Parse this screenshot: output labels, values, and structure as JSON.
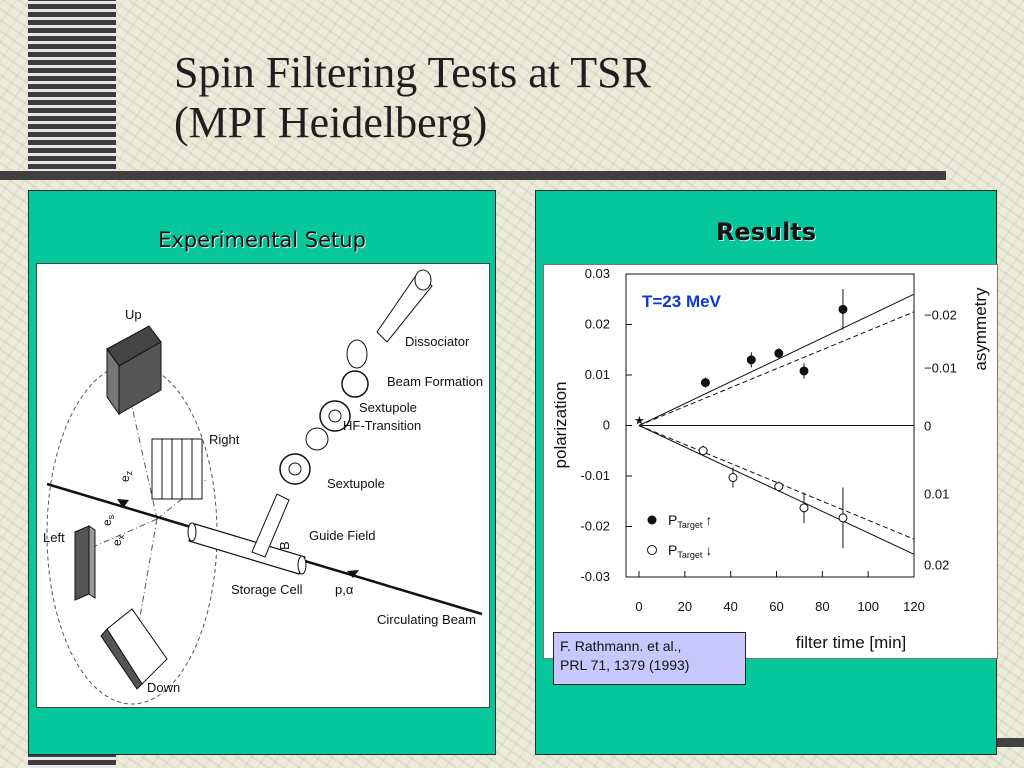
{
  "slide": {
    "title_line1": "Spin Filtering Tests at TSR",
    "title_line2": "(MPI Heidelberg)"
  },
  "left_panel": {
    "heading": "Experimental Setup",
    "labels": {
      "up": "Up",
      "right": "Right",
      "left": "Left",
      "down": "Down",
      "dissociator": "Dissociator",
      "beam_formation": "Beam Formation",
      "sextupole_1": "Sextupole",
      "hf_transition": "HF-Transition",
      "sextupole_2": "Sextupole",
      "guide_field": "Guide Field",
      "b_field": "B",
      "storage_cell": "Storage Cell",
      "circulating_beam": "Circulating Beam",
      "p_alpha": "p,α",
      "e_z": "e",
      "e_z_sub": "z",
      "e_s": "e",
      "e_s_sub": "s",
      "e_x": "e",
      "e_x_sub": "x"
    }
  },
  "right_panel": {
    "heading": "Results",
    "citation_line1": "F. Rathmann. et al.,",
    "citation_line2": "PRL 71, 1379 (1993)"
  },
  "chart_data": {
    "type": "scatter",
    "annotation": "T=23 MeV",
    "xlabel": "filter time [min]",
    "ylabel": "polarization",
    "y2label": "asymmetry",
    "xlim": [
      0,
      120
    ],
    "ylim": [
      -0.03,
      0.03
    ],
    "x_ticks": [
      "0",
      "20",
      "40",
      "60",
      "80",
      "100",
      "120"
    ],
    "y_ticks": [
      "0.03",
      "0.02",
      "0.01",
      "0",
      "-0.01",
      "-0.02",
      "-0.03"
    ],
    "y2_ticks": [
      "−0.02",
      "−0.01",
      "0",
      "0.01",
      "0.02"
    ],
    "legend": {
      "up_label": "P",
      "up_sub": "Target",
      "up_arrow": "↑",
      "down_label": "P",
      "down_sub": "Target",
      "down_arrow": "↓"
    },
    "series": [
      {
        "marker": "filled-circle",
        "points": [
          {
            "x": 29,
            "y": 0.0085,
            "err": 0.001
          },
          {
            "x": 49,
            "y": 0.013,
            "err": 0.0015
          },
          {
            "x": 61,
            "y": 0.0143,
            "err": 0.001
          },
          {
            "x": 72,
            "y": 0.0108,
            "err": 0.0015
          },
          {
            "x": 89,
            "y": 0.023,
            "err": 0.004
          }
        ]
      },
      {
        "marker": "open-circle",
        "points": [
          {
            "x": 28,
            "y": -0.005,
            "err": 0.001
          },
          {
            "x": 41,
            "y": -0.0103,
            "err": 0.002
          },
          {
            "x": 61,
            "y": -0.0121,
            "err": 0.001
          },
          {
            "x": 72,
            "y": -0.0163,
            "err": 0.003
          },
          {
            "x": 89,
            "y": -0.0183,
            "err": 0.006
          }
        ]
      }
    ],
    "reference_point": {
      "x": 0,
      "y": 0.001,
      "marker": "star"
    },
    "fit_lines": [
      {
        "style": "solid",
        "from": [
          0,
          0
        ],
        "to": [
          120,
          0.026
        ]
      },
      {
        "style": "dashed",
        "from": [
          0,
          0
        ],
        "to": [
          120,
          0.0225
        ]
      },
      {
        "style": "solid",
        "from": [
          0,
          0
        ],
        "to": [
          120,
          -0.0255
        ]
      },
      {
        "style": "dashed",
        "from": [
          0,
          0
        ],
        "to": [
          120,
          -0.0225
        ]
      }
    ],
    "zero_line": true
  }
}
